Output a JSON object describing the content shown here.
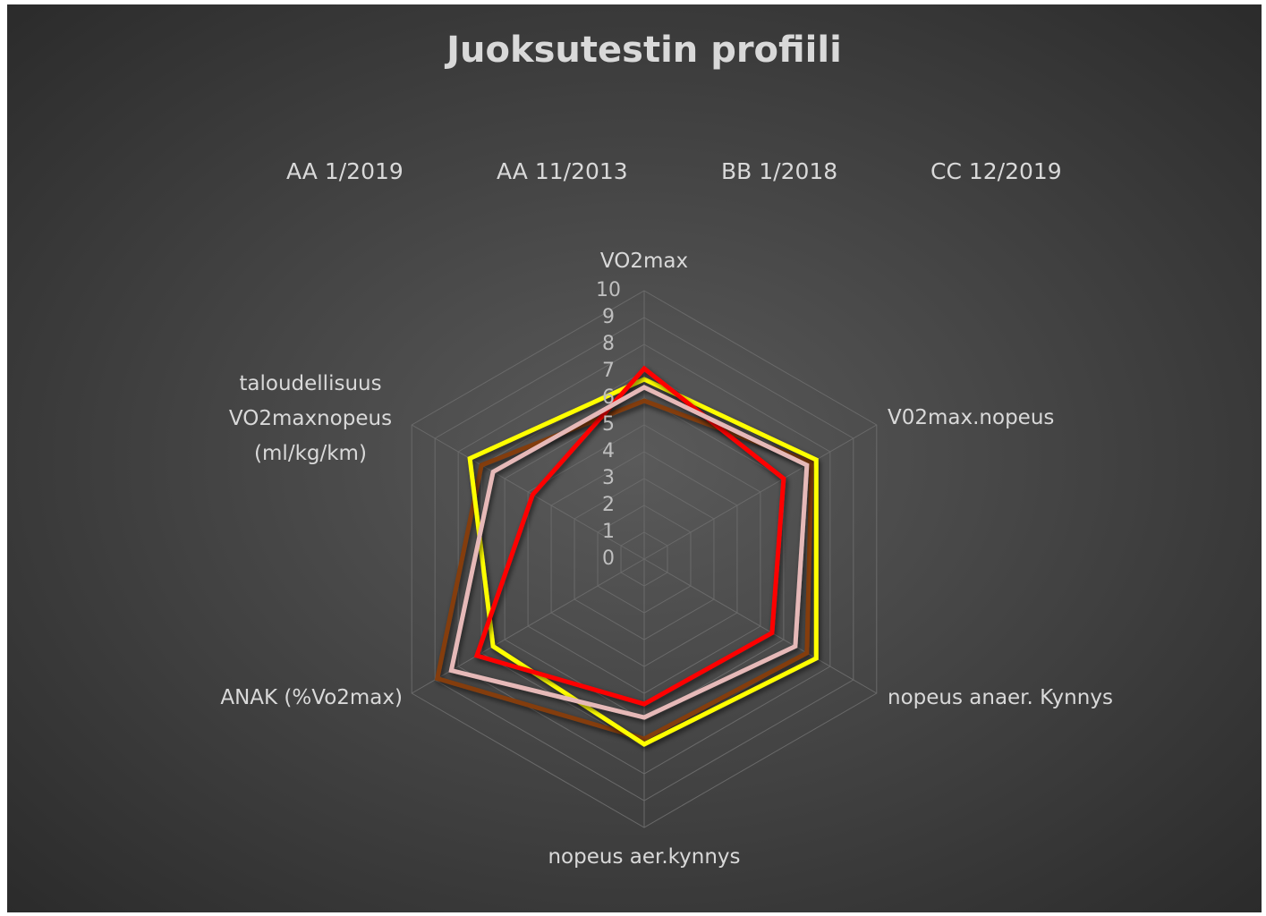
{
  "chart_data": {
    "type": "radar",
    "title": "Juoksutestin profiili",
    "categories": [
      "VO2max",
      "V02max.nopeus",
      "nopeus anaer. Kynnys",
      "nopeus aer.kynnys",
      "ANAK (%Vo2max)",
      "taloudellisuus VO2maxnopeus (ml/kg/km)"
    ],
    "series": [
      {
        "name": "AA 1/2019",
        "color": "#843c0c",
        "values": [
          5.9,
          7.2,
          7.0,
          6.7,
          8.9,
          7.0
        ]
      },
      {
        "name": "AA 11/2013",
        "color": "#ffff00",
        "values": [
          6.7,
          7.4,
          7.4,
          6.9,
          6.5,
          7.5
        ]
      },
      {
        "name": "BB 1/2018",
        "color": "#ff0000",
        "values": [
          7.1,
          6.0,
          5.5,
          5.4,
          7.2,
          4.8
        ]
      },
      {
        "name": "CC 12/2019",
        "color": "#e6b9b8",
        "values": [
          6.4,
          7.0,
          6.5,
          5.9,
          8.3,
          6.5
        ]
      }
    ],
    "ylim": [
      0,
      10
    ],
    "yticks": [
      0,
      1,
      2,
      3,
      4,
      5,
      6,
      7,
      8,
      9,
      10
    ],
    "grid": true,
    "legend": "top"
  }
}
